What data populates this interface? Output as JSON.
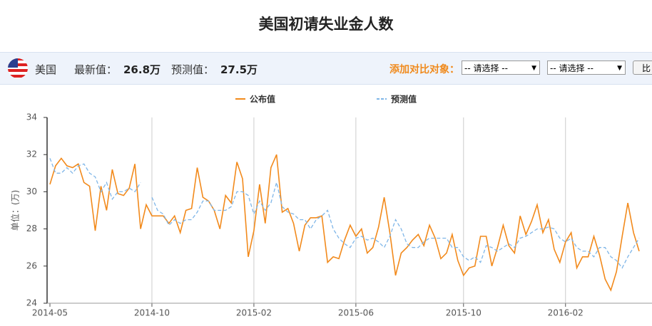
{
  "info_bar": {
    "country": "美国",
    "latest_label": "最新值：",
    "latest_value": "26.8万",
    "forecast_label": "预测值：",
    "forecast_value": "27.5万",
    "compare_label": "添加对比对象：",
    "selects": [
      "-- 请选择 --",
      "-- 请选择 --"
    ],
    "button": "比"
  },
  "chart_data": {
    "type": "line",
    "title": "美国初请失业金人数",
    "y_label": "单位：(万)",
    "categories": [
      "2014-05",
      null,
      null,
      null,
      null,
      null,
      null,
      null,
      null,
      null,
      null,
      null,
      null,
      null,
      null,
      null,
      null,
      null,
      "2014-10",
      null,
      null,
      null,
      null,
      null,
      null,
      null,
      null,
      null,
      null,
      null,
      null,
      null,
      null,
      null,
      null,
      null,
      "2015-02",
      null,
      null,
      null,
      null,
      null,
      null,
      null,
      null,
      null,
      null,
      null,
      null,
      null,
      null,
      null,
      null,
      null,
      "2015-06",
      null,
      null,
      null,
      null,
      null,
      null,
      null,
      null,
      null,
      null,
      null,
      null,
      null,
      null,
      null,
      null,
      null,
      null,
      "2015-10",
      null,
      null,
      null,
      null,
      null,
      null,
      null,
      null,
      null,
      null,
      null,
      null,
      null,
      null,
      null,
      null,
      null,
      "2016-02",
      null,
      null,
      null,
      null,
      null,
      null,
      null,
      null,
      null,
      null,
      null,
      null,
      null
    ],
    "series": [
      {
        "name": "公布值",
        "color": "#f28a1c",
        "dashed": false,
        "values": [
          30.4,
          31.4,
          31.8,
          31.4,
          31.3,
          31.5,
          30.5,
          30.3,
          27.9,
          30.3,
          29.0,
          31.2,
          29.9,
          29.8,
          30.2,
          31.5,
          28.0,
          29.3,
          28.7,
          28.7,
          28.7,
          28.3,
          28.7,
          27.8,
          29.0,
          29.1,
          31.3,
          29.7,
          29.5,
          29.0,
          28.0,
          29.8,
          29.4,
          31.6,
          30.7,
          26.5,
          27.9,
          30.4,
          28.3,
          31.3,
          32.0,
          28.9,
          29.1,
          28.3,
          26.8,
          28.2,
          28.6,
          28.6,
          28.7,
          26.2,
          26.5,
          26.4,
          27.4,
          28.2,
          27.6,
          28.0,
          26.7,
          27.0,
          28.1,
          29.7,
          27.8,
          25.5,
          26.7,
          27.0,
          27.4,
          27.7,
          27.1,
          28.2,
          27.5,
          26.4,
          26.7,
          27.7,
          26.3,
          25.5,
          25.9,
          26.0,
          27.6,
          27.6,
          26.0,
          27.0,
          28.2,
          27.1,
          26.7,
          28.7,
          27.7,
          28.4,
          29.3,
          27.8,
          28.5,
          26.9,
          26.2,
          27.3,
          27.8,
          25.9,
          26.5,
          26.5,
          27.6,
          26.6,
          25.3,
          24.7,
          25.7,
          27.6,
          29.4,
          27.8,
          26.8
        ]
      },
      {
        "name": "预测值",
        "color": "#7fb6e8",
        "dashed": true,
        "values": [
          31.8,
          31.0,
          31.0,
          31.3,
          31.0,
          31.4,
          31.5,
          31.0,
          30.8,
          30.0,
          30.5,
          29.6,
          30.0,
          30.0,
          30.2,
          30.0,
          30.5,
          null,
          29.7,
          29.0,
          28.8,
          28.2,
          28.5,
          28.3,
          28.5,
          28.5,
          28.9,
          29.5,
          29.5,
          29.0,
          29.0,
          29.0,
          29.2,
          30.0,
          30.0,
          29.8,
          28.8,
          29.5,
          29.0,
          29.4,
          30.5,
          29.2,
          28.9,
          28.8,
          28.5,
          28.5,
          28.0,
          28.5,
          28.7,
          29.0,
          28.0,
          27.5,
          27.2,
          27.0,
          27.5,
          27.6,
          27.4,
          27.5,
          27.3,
          27.0,
          27.6,
          28.5,
          28.0,
          27.2,
          27.0,
          27.0,
          27.3,
          27.5,
          27.5,
          27.5,
          27.5,
          27.0,
          27.0,
          26.5,
          26.3,
          26.5,
          26.2,
          27.1,
          27.0,
          26.8,
          27.0,
          27.2,
          27.0,
          27.5,
          27.6,
          27.8,
          28.0,
          28.0,
          28.1,
          28.0,
          27.5,
          27.3,
          27.5,
          27.0,
          26.8,
          26.8,
          26.5,
          27.0,
          27.0,
          26.5,
          26.3,
          25.9,
          26.5,
          27.0,
          27.5
        ]
      }
    ],
    "ylim": [
      24,
      34
    ],
    "yticks": [
      24,
      26,
      28,
      30,
      32,
      34
    ],
    "grid": "x"
  }
}
